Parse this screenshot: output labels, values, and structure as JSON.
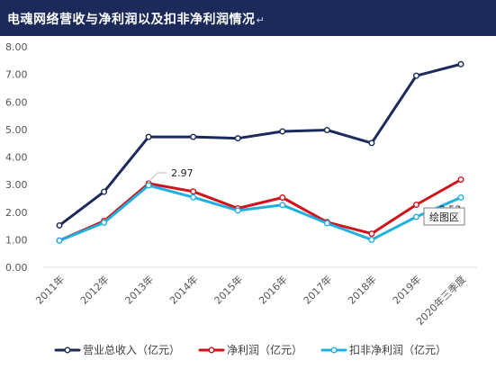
{
  "header": {
    "title": "电魂网络营收与净利润以及扣非净利润情况",
    "mark": "↵"
  },
  "tooltip": {
    "text": "绘图区"
  },
  "colors": {
    "header_bg": "#1b2a5a"
  },
  "chart_data": {
    "type": "line",
    "categories": [
      "2011年",
      "2012年",
      "2013年",
      "2014年",
      "2015年",
      "2016年",
      "2017年",
      "2018年",
      "2019年",
      "2020年三季度"
    ],
    "ylim": [
      0,
      8
    ],
    "yticks": [
      "0.00",
      "1.00",
      "2.00",
      "3.00",
      "4.00",
      "5.00",
      "6.00",
      "7.00",
      "8.00"
    ],
    "grid": false,
    "legend_position": "bottom",
    "series": [
      {
        "name": "营业总收入（亿元）",
        "color": "#1b2a5a",
        "values": [
          1.52,
          2.74,
          4.73,
          4.73,
          4.68,
          4.93,
          4.98,
          4.51,
          6.95,
          7.37
        ]
      },
      {
        "name": "净利润（亿元）",
        "color": "#d0121b",
        "values": [
          0.97,
          1.68,
          3.04,
          2.75,
          2.14,
          2.53,
          1.64,
          1.22,
          2.27,
          3.18
        ]
      },
      {
        "name": "扣非净利润（亿元）",
        "color": "#20b0e0",
        "values": [
          0.97,
          1.62,
          2.97,
          2.54,
          2.06,
          2.26,
          1.6,
          1.0,
          1.83,
          2.53
        ]
      }
    ],
    "annotations": [
      {
        "series": 2,
        "index": 2,
        "text": "2.97"
      },
      {
        "series": 2,
        "index": 9,
        "text": "2.53"
      }
    ]
  }
}
